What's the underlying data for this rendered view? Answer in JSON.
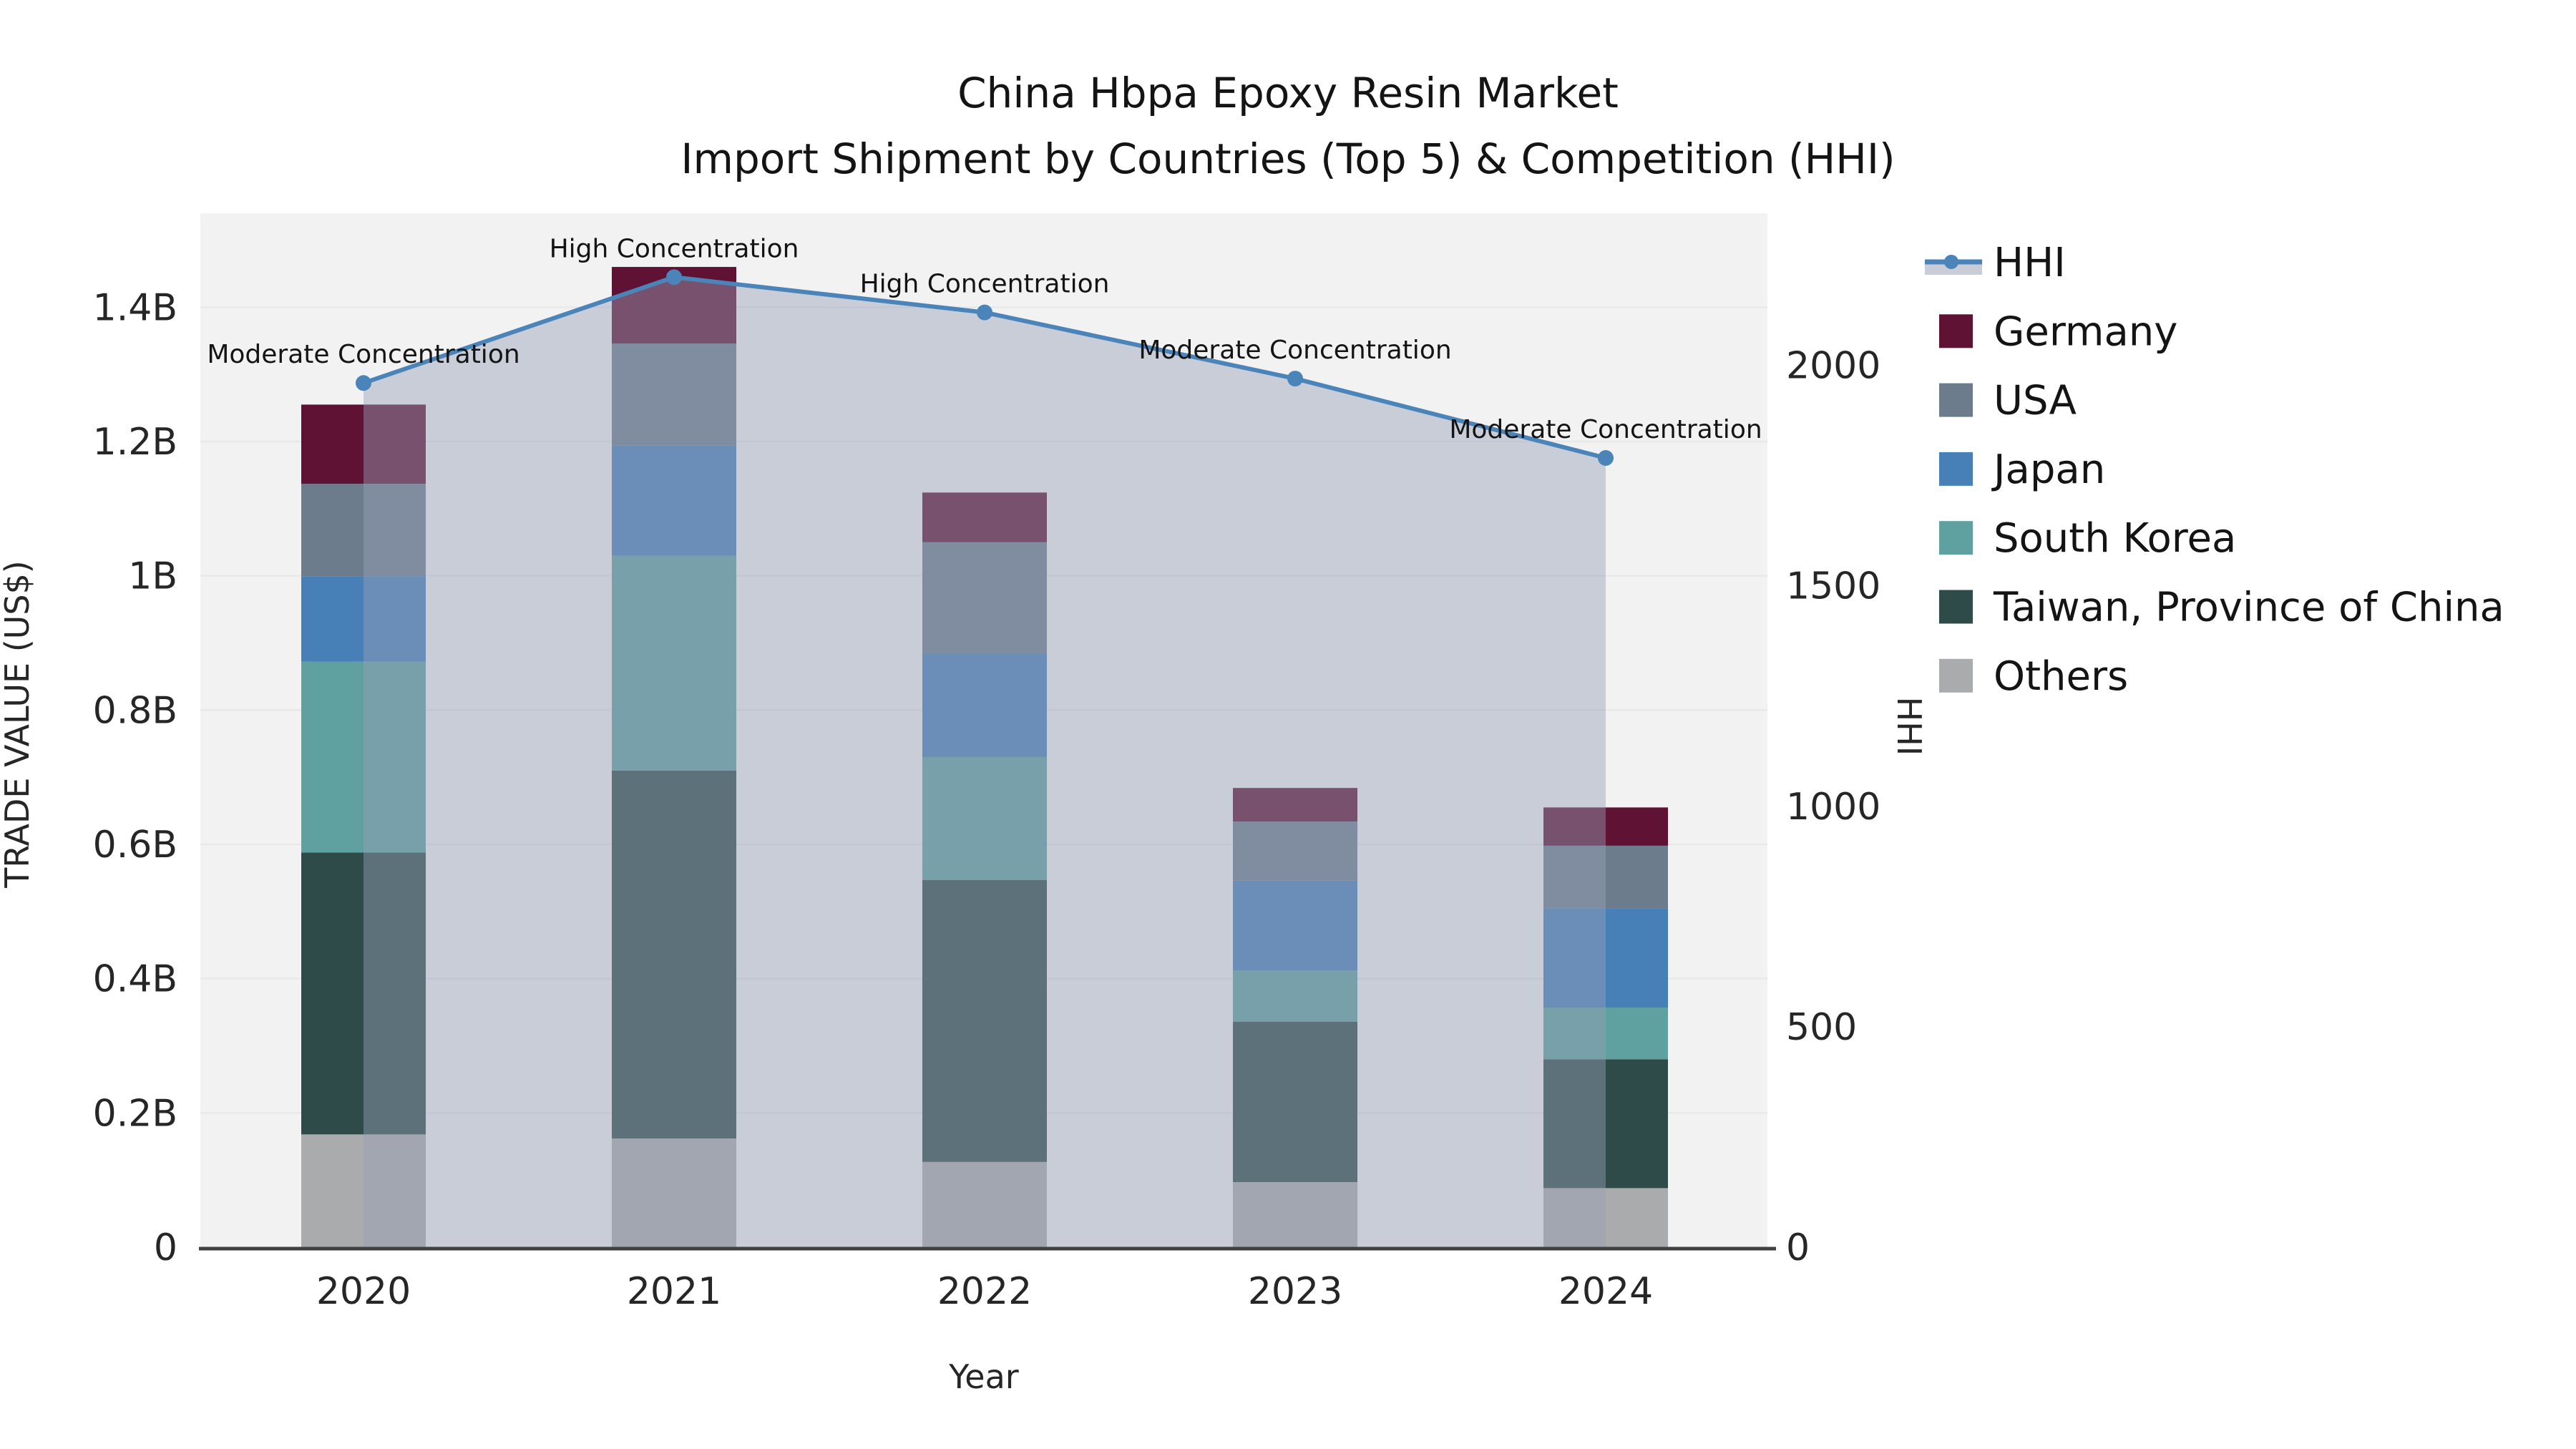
{
  "title": {
    "line1": "China Hbpa Epoxy Resin Market",
    "line2": "Import Shipment by Countries (Top 5) & Competition (HHI)"
  },
  "chart_data": {
    "type": "bar",
    "variant": "stacked-bars-with-secondary-axis-line-and-area",
    "title": "China Hbpa Epoxy Resin Market — Import Shipment by Countries (Top 5) & Competition (HHI)",
    "categories": [
      "2020",
      "2021",
      "2022",
      "2023",
      "2024"
    ],
    "values_unit": "billion US$",
    "series": [
      {
        "name": "Others",
        "color": "#a9abac",
        "values": [
          0.168,
          0.162,
          0.127,
          0.097,
          0.088
        ]
      },
      {
        "name": "Taiwan, Province of China",
        "color": "#2e4b49",
        "values": [
          0.42,
          0.548,
          0.42,
          0.239,
          0.192
        ]
      },
      {
        "name": "South Korea",
        "color": "#5fa0a0",
        "values": [
          0.284,
          0.32,
          0.183,
          0.076,
          0.077
        ]
      },
      {
        "name": "Japan",
        "color": "#4680b6",
        "values": [
          0.127,
          0.164,
          0.154,
          0.134,
          0.148
        ]
      },
      {
        "name": "USA",
        "color": "#6d7c8d",
        "values": [
          0.138,
          0.152,
          0.166,
          0.088,
          0.093
        ]
      },
      {
        "name": "Germany",
        "color": "#5f1233",
        "values": [
          0.118,
          0.114,
          0.074,
          0.05,
          0.057
        ]
      }
    ],
    "stack_totals": [
      1.255,
      1.46,
      1.124,
      0.684,
      0.655
    ],
    "line_series": {
      "name": "HHI",
      "axis": "right",
      "color": "#4a84b8",
      "area_fill": "rgba(150,160,185,0.45)",
      "marker": "circle",
      "values": [
        1960,
        2200,
        2120,
        1970,
        1790
      ]
    },
    "annotations": [
      "Moderate Concentration",
      "High Concentration",
      "High Concentration",
      "Moderate Concentration",
      "Moderate Concentration"
    ],
    "x_axis": {
      "label": "Year"
    },
    "y_left": {
      "label": "TRADE VALUE (US$)",
      "max": 1.54,
      "ticks": [
        {
          "v": 0,
          "t": "0"
        },
        {
          "v": 0.2,
          "t": "0.2B"
        },
        {
          "v": 0.4,
          "t": "0.4B"
        },
        {
          "v": 0.6,
          "t": "0.6B"
        },
        {
          "v": 0.8,
          "t": "0.8B"
        },
        {
          "v": 1.0,
          "t": "1B"
        },
        {
          "v": 1.2,
          "t": "1.2B"
        },
        {
          "v": 1.4,
          "t": "1.4B"
        }
      ]
    },
    "y_right": {
      "label": "HHI",
      "max": 2345,
      "ticks": [
        {
          "v": 0,
          "t": "0"
        },
        {
          "v": 500,
          "t": "500"
        },
        {
          "v": 1000,
          "t": "1000"
        },
        {
          "v": 1500,
          "t": "1500"
        },
        {
          "v": 2000,
          "t": "2000"
        }
      ]
    },
    "legend": [
      {
        "label": "HHI",
        "swatch": "line",
        "color": "#4a84b8",
        "band": "#c8cdd8"
      },
      {
        "label": "Germany",
        "swatch": "square",
        "color": "#5f1233"
      },
      {
        "label": "USA",
        "swatch": "square",
        "color": "#6d7c8d"
      },
      {
        "label": "Japan",
        "swatch": "square",
        "color": "#4680b6"
      },
      {
        "label": "South Korea",
        "swatch": "square",
        "color": "#5fa0a0"
      },
      {
        "label": "Taiwan, Province of China",
        "swatch": "square",
        "color": "#2e4b49"
      },
      {
        "label": "Others",
        "swatch": "square",
        "color": "#a9abac"
      }
    ],
    "layout_hints": {
      "grid": "horizontal",
      "legend_position": "right",
      "plot_bg": "#f2f2f3",
      "figure_bg": "#ffffff"
    }
  },
  "colors": {
    "plot_bg": "#f2f2f3",
    "grid": "#e8e8ea",
    "axis_line": "#404040",
    "text": "#262626",
    "figure_bg": "#ffffff"
  }
}
